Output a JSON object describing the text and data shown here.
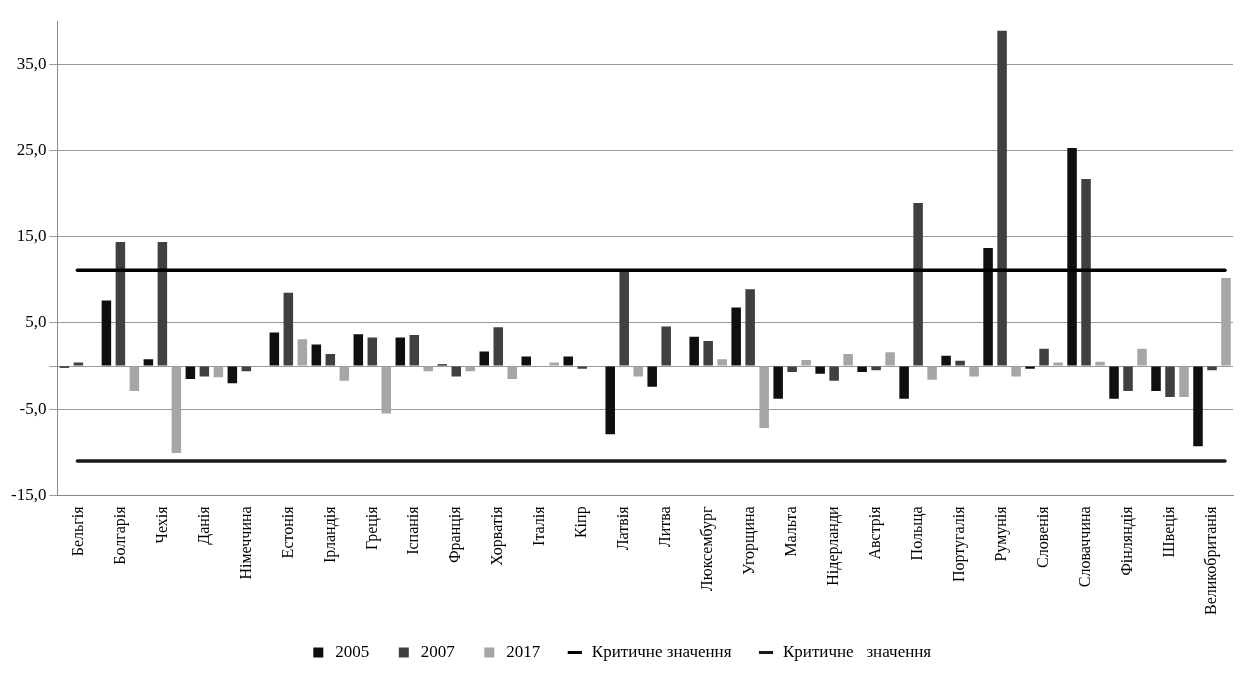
{
  "chart_data": {
    "type": "bar",
    "categories": [
      "Бельгія",
      "Болгарія",
      "Чехія",
      "Данія",
      "Німеччина",
      "Естонія",
      "Ірландія",
      "Греція",
      "Іспанія",
      "Франція",
      "Хорватія",
      "Італія",
      "Кіпр",
      "Латвія",
      "Литва",
      "Люксембург",
      "Угорщина",
      "Мальта",
      "Нідерланди",
      "Австрія",
      "Польща",
      "Португалія",
      "Румунія",
      "Словенія",
      "Словаччина",
      "Фінляндія",
      "Швеція",
      "Великобританія"
    ],
    "series": [
      {
        "name": "2005",
        "color": "#0f0f0f",
        "values": [
          -0.2,
          7.6,
          0.8,
          -1.5,
          -2.0,
          3.9,
          2.5,
          3.7,
          3.3,
          0.2,
          1.7,
          1.1,
          1.1,
          -7.9,
          -2.4,
          3.4,
          6.8,
          -3.8,
          -0.9,
          -0.7,
          -3.8,
          1.2,
          13.7,
          -0.3,
          25.3,
          -3.8,
          -2.9,
          -9.3
        ]
      },
      {
        "name": "2007",
        "color": "#404040",
        "values": [
          0.4,
          14.4,
          14.4,
          -1.2,
          -0.6,
          8.5,
          1.4,
          3.3,
          3.6,
          -1.2,
          4.5,
          0.0,
          -0.3,
          10.9,
          4.6,
          2.9,
          8.9,
          -0.7,
          -1.7,
          -0.5,
          18.9,
          0.6,
          38.9,
          2.0,
          21.7,
          -2.9,
          -3.6,
          -0.5
        ]
      },
      {
        "name": "2017",
        "color": "#a6a6a6",
        "values": [
          0.0,
          -2.9,
          -10.1,
          -1.3,
          0.0,
          3.1,
          -1.7,
          -5.5,
          -0.6,
          -0.6,
          -1.5,
          0.4,
          0.0,
          -1.2,
          0.0,
          0.8,
          -7.2,
          0.7,
          1.4,
          1.6,
          -1.6,
          -1.2,
          -1.2,
          0.4,
          0.5,
          2.0,
          -3.6,
          10.2
        ]
      }
    ],
    "ylim": [
      -15,
      40
    ],
    "yticks": [
      {
        "value": -15,
        "label": "-15,0"
      },
      {
        "value": -5,
        "label": "-5,0"
      },
      {
        "value": 0,
        "label": null
      },
      {
        "value": 5,
        "label": "5,0"
      },
      {
        "value": 15,
        "label": "15,0"
      },
      {
        "value": 25,
        "label": "25,0"
      },
      {
        "value": 35,
        "label": "35,0"
      }
    ],
    "ref_lines": [
      {
        "axis": "y",
        "value": 11.1,
        "label": "Критичне значення",
        "color": "#000000"
      },
      {
        "axis": "y",
        "value": -11.0,
        "label": "Критичне   значення",
        "color": "#1a1a1a"
      }
    ],
    "grid": "y",
    "legend": "bottom"
  }
}
